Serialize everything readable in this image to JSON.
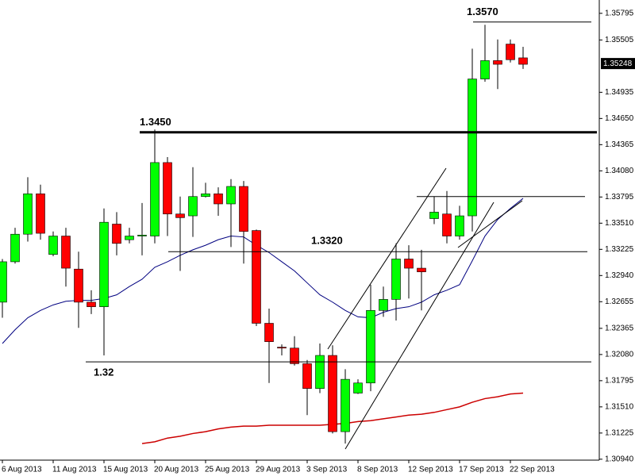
{
  "chart_data": {
    "type": "candlestick",
    "x": [
      "6 Aug 2013",
      null,
      null,
      null,
      "11 Aug 2013",
      null,
      null,
      null,
      "15 Aug 2013",
      null,
      null,
      null,
      "20 Aug 2013",
      null,
      null,
      null,
      "25 Aug 2013",
      null,
      null,
      null,
      "29 Aug 2013",
      null,
      null,
      null,
      "3 Sep 2013",
      null,
      null,
      null,
      "8 Sep 2013",
      null,
      null,
      null,
      "12 Sep 2013",
      null,
      null,
      null,
      "17 Sep 2013",
      null,
      null,
      null,
      "22 Sep 2013",
      null
    ],
    "open": [
      1.3265,
      1.3309,
      1.3339,
      1.3383,
      1.3317,
      1.3337,
      1.3301,
      1.3265,
      1.326,
      1.335,
      1.3333,
      1.3337,
      1.3337,
      1.3417,
      1.3361,
      1.3359,
      1.338,
      1.3383,
      1.3372,
      1.3391,
      1.3343,
      1.3242,
      1.3216,
      1.3215,
      1.3198,
      1.3171,
      1.3207,
      1.3124,
      1.3166,
      1.3177,
      1.3256,
      1.3268,
      1.3312,
      1.3302,
      1.3356,
      1.3361,
      1.3337,
      1.3359,
      1.3508,
      1.3528,
      1.3546,
      1.3531
    ],
    "high": [
      1.3312,
      1.3346,
      1.3401,
      1.3393,
      1.3342,
      1.3346,
      1.332,
      1.3278,
      1.3367,
      1.3363,
      1.3346,
      1.3373,
      1.3453,
      1.3423,
      1.338,
      1.3412,
      1.3395,
      1.339,
      1.3399,
      1.3397,
      1.3344,
      1.3258,
      1.3219,
      1.3228,
      1.3202,
      1.322,
      1.3218,
      1.3192,
      1.3181,
      1.3284,
      1.3282,
      1.3329,
      1.3327,
      1.3322,
      1.338,
      1.3386,
      1.337,
      1.3541,
      1.3567,
      1.3551,
      1.3551,
      1.3543
    ],
    "low": [
      1.3248,
      1.3307,
      1.3331,
      1.3333,
      1.3315,
      1.3282,
      1.3237,
      1.3252,
      1.3207,
      1.3316,
      1.3329,
      1.3316,
      1.3329,
      1.3337,
      1.3299,
      1.3336,
      1.3379,
      1.3359,
      1.3325,
      1.3307,
      1.3239,
      1.3177,
      1.3207,
      1.3196,
      1.3142,
      1.3166,
      1.3122,
      1.3111,
      1.3165,
      1.3168,
      1.3249,
      1.3245,
      1.3269,
      1.3256,
      1.335,
      1.3329,
      1.3333,
      1.3342,
      1.3505,
      1.3497,
      1.3526,
      1.3519
    ],
    "close": [
      1.3309,
      1.3339,
      1.3383,
      1.334,
      1.3337,
      1.3302,
      1.3265,
      1.326,
      1.3352,
      1.3329,
      1.3337,
      1.3338,
      1.3417,
      1.3361,
      1.3357,
      1.338,
      1.3383,
      1.3372,
      1.3391,
      1.3342,
      1.3242,
      1.3222,
      1.3215,
      1.3198,
      1.3171,
      1.3207,
      1.3124,
      1.3181,
      1.3177,
      1.3256,
      1.3268,
      1.3312,
      1.3302,
      1.3298,
      1.3363,
      1.3337,
      1.3359,
      1.3508,
      1.3528,
      1.3524,
      1.3529,
      1.3524
    ],
    "up_color": "#00ff00",
    "down_color": "#ff0000",
    "moving_averages": [
      {
        "color": "#000080",
        "values": [
          1.322,
          1.3235,
          1.3248,
          1.3256,
          1.3262,
          1.3266,
          1.3267,
          1.3267,
          1.3269,
          1.3273,
          1.3282,
          1.329,
          1.3303,
          1.3309,
          1.3316,
          1.3322,
          1.3327,
          1.3333,
          1.3337,
          1.3336,
          1.3327,
          1.3319,
          1.3309,
          1.3299,
          1.3286,
          1.3273,
          1.3265,
          1.3256,
          1.3249,
          1.3248,
          1.3254,
          1.3258,
          1.326,
          1.3265,
          1.3273,
          1.3278,
          1.3284,
          1.331,
          1.3337,
          1.3355,
          1.3367,
          1.3378
        ]
      },
      {
        "color": "#cc0000",
        "values": [
          null,
          null,
          null,
          null,
          null,
          null,
          null,
          null,
          null,
          null,
          null,
          1.3111,
          1.3113,
          1.3117,
          1.3119,
          1.3122,
          1.3124,
          1.3127,
          1.3129,
          1.313,
          1.313,
          1.3131,
          1.3131,
          1.3131,
          1.3131,
          1.3131,
          1.3132,
          1.3133,
          1.3135,
          1.3136,
          1.3138,
          1.314,
          1.3142,
          1.3143,
          1.3145,
          1.3148,
          1.3151,
          1.3156,
          1.316,
          1.3162,
          1.3165,
          1.3166
        ]
      }
    ],
    "levels": [
      {
        "value": 1.357,
        "label": "1.3570"
      },
      {
        "value": 1.345,
        "label": "1.3450"
      },
      {
        "value": 1.338
      },
      {
        "value": 1.332,
        "label": "1.3320"
      },
      {
        "value": 1.32,
        "label": "1.32"
      }
    ],
    "current_price": 1.35248,
    "ylim": [
      1.3093,
      1.3594
    ],
    "yticks": [
      1.35795,
      1.35505,
      1.34935,
      {
        "value": 1.3465,
        "label": "1.34650"
      },
      1.34365,
      {
        "value": 1.3408,
        "label": "1.34080"
      },
      1.33795,
      {
        "value": 1.3351,
        "label": "1.33510"
      },
      1.33225,
      {
        "value": 1.3294,
        "label": "1.32940"
      },
      1.32655,
      1.32365,
      {
        "value": 1.3208,
        "label": "1.32080"
      },
      1.31795,
      {
        "value": 1.3151,
        "label": "1.31510"
      },
      1.31225,
      {
        "value": 1.3094,
        "label": "1.30940"
      }
    ]
  }
}
